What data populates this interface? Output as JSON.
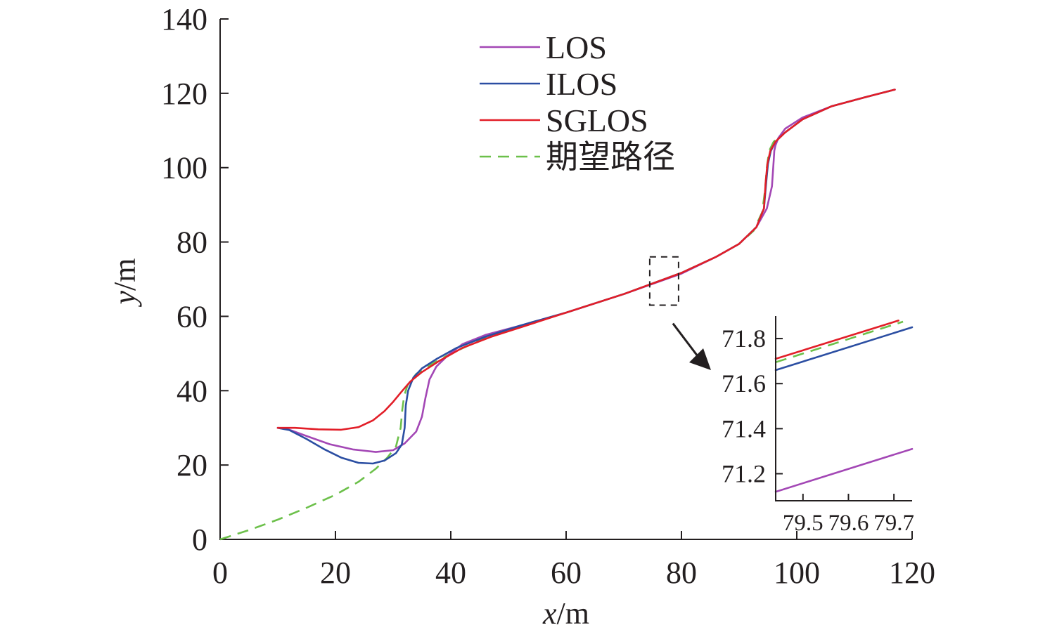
{
  "chart_data": {
    "main": {
      "type": "line",
      "xlabel_var": "x",
      "xlabel_unit": "/m",
      "ylabel_var": "y",
      "ylabel_unit": "/m",
      "xlim": [
        0,
        120
      ],
      "ylim": [
        0,
        140
      ],
      "xticks": [
        "0",
        "20",
        "40",
        "60",
        "80",
        "100",
        "120"
      ],
      "yticks": [
        "0",
        "20",
        "40",
        "60",
        "80",
        "100",
        "120",
        "140"
      ],
      "legend_position": "top-center",
      "series": [
        {
          "name": "LOS",
          "color": "#a347b5",
          "dash": "solid",
          "x": [
            10,
            12,
            15,
            19,
            23,
            27,
            30,
            32,
            34,
            35,
            35.6,
            36.3,
            37.5,
            39.5,
            42,
            46,
            52,
            60,
            70,
            80,
            86,
            90,
            93,
            94.8,
            95.7,
            96.0,
            96.1,
            96.3,
            96.8,
            98,
            101,
            106,
            112,
            117
          ],
          "y": [
            30,
            29.5,
            27.8,
            25.6,
            24.2,
            23.5,
            24,
            25.8,
            29,
            33,
            38,
            43,
            46.5,
            49.5,
            52.5,
            55,
            57.5,
            61,
            66,
            71.5,
            76,
            79.5,
            84,
            89,
            95,
            102,
            104.5,
            106,
            108,
            110.5,
            113.5,
            116.5,
            119,
            121
          ]
        },
        {
          "name": "ILOS",
          "color": "#2b4ea2",
          "dash": "solid",
          "x": [
            10,
            12,
            15,
            18,
            21,
            24,
            26.5,
            28.5,
            30.5,
            31.5,
            32,
            32.2,
            32.6,
            33.5,
            35,
            37.5,
            41,
            46,
            52,
            60,
            70,
            80,
            86,
            90,
            93,
            94.3,
            94.7,
            95.0,
            95.5,
            96.3,
            98,
            101,
            106,
            112,
            117
          ],
          "y": [
            30,
            29.4,
            27,
            24.3,
            22,
            20.6,
            20.4,
            21.2,
            23.2,
            25.5,
            30,
            36,
            40,
            43.5,
            46,
            48.5,
            51.5,
            54.5,
            57.5,
            61,
            66,
            71.7,
            76,
            79.5,
            84,
            89,
            96,
            101,
            104.5,
            107,
            109.5,
            113,
            116.5,
            119,
            121
          ]
        },
        {
          "name": "SGLOS",
          "color": "#e21e28",
          "dash": "solid",
          "x": [
            10,
            13,
            17,
            21,
            24,
            26.5,
            28.5,
            30,
            31.5,
            33,
            35,
            38,
            42,
            47,
            53,
            60,
            70,
            80,
            86,
            90,
            93,
            94.3,
            94.6,
            94.9,
            95.4,
            96.3,
            98,
            101,
            106,
            112,
            117
          ],
          "y": [
            30,
            30,
            29.6,
            29.5,
            30.2,
            32,
            34.5,
            37,
            39.8,
            42.5,
            45,
            48,
            51.5,
            54.5,
            57.5,
            61,
            66,
            71.7,
            76,
            79.5,
            84,
            89,
            96,
            101,
            104.5,
            107,
            109.5,
            113,
            116.5,
            119,
            121
          ]
        },
        {
          "name": "期望路径",
          "color": "#6cc04a",
          "dash": "dashed",
          "x": [
            0,
            5,
            10,
            15,
            20,
            24,
            27,
            29,
            30.5,
            31.3,
            31.6,
            31.9,
            32.5,
            34,
            36.5,
            40,
            45,
            52,
            60,
            70,
            80,
            86,
            90,
            92.5,
            94,
            94.5,
            94.8,
            95.2,
            96,
            98,
            101,
            106,
            112,
            117
          ],
          "y": [
            0,
            2.5,
            5.3,
            8.5,
            12,
            15.5,
            19,
            22,
            25,
            30,
            35,
            38.5,
            41.5,
            44.5,
            47,
            50,
            53.5,
            57.5,
            61,
            66,
            71.7,
            76,
            79.5,
            83,
            88,
            94,
            100,
            104.5,
            107,
            109.5,
            113,
            116.5,
            119,
            121
          ]
        }
      ],
      "zoom_box": {
        "xlim": [
          74.5,
          79.5
        ],
        "ylim": [
          63,
          76
        ]
      }
    },
    "inset": {
      "type": "line",
      "xlim": [
        79.44,
        79.74
      ],
      "ylim": [
        71.08,
        71.9
      ],
      "xticks": [
        "79.5",
        "79.6",
        "79.7"
      ],
      "yticks": [
        "71.2",
        "71.4",
        "71.6",
        "71.8"
      ],
      "series": [
        {
          "name": "LOS",
          "color": "#a347b5",
          "dash": "solid",
          "x": [
            79.44,
            79.74
          ],
          "y": [
            71.12,
            71.31
          ]
        },
        {
          "name": "ILOS",
          "color": "#2b4ea2",
          "dash": "solid",
          "x": [
            79.44,
            79.74
          ],
          "y": [
            71.66,
            71.85
          ]
        },
        {
          "name": "SGLOS",
          "color": "#e21e28",
          "dash": "solid",
          "x": [
            79.44,
            79.71
          ],
          "y": [
            71.71,
            71.88
          ]
        },
        {
          "name": "期望路径",
          "color": "#6cc04a",
          "dash": "dashed",
          "x": [
            79.44,
            79.72
          ],
          "y": [
            71.695,
            71.875
          ]
        }
      ]
    }
  }
}
